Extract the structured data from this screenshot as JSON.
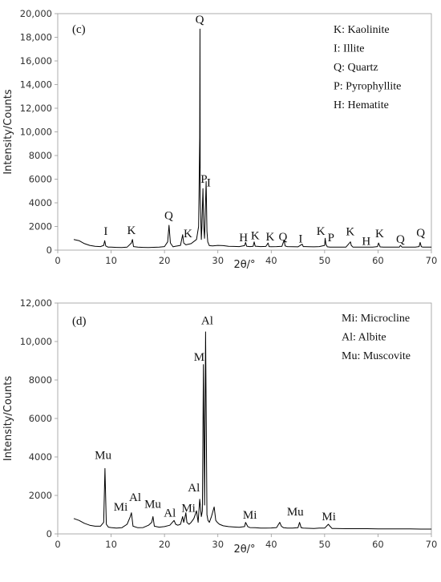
{
  "chart_data": [
    {
      "type": "line",
      "panel_label": "(c)",
      "xlabel": "2θ/°",
      "ylabel": "Intensity/Counts",
      "xlim": [
        0,
        70
      ],
      "ylim": [
        0,
        20000
      ],
      "x_ticks": [
        0,
        10,
        20,
        30,
        40,
        50,
        60,
        70
      ],
      "y_ticks": [
        0,
        2000,
        4000,
        6000,
        8000,
        10000,
        12000,
        14000,
        16000,
        18000,
        20000
      ],
      "y_tick_labels": [
        "0",
        "2000",
        "4000",
        "6000",
        "8000",
        "10,000",
        "12,000",
        "14,000",
        "16,000",
        "18,000",
        "20,000"
      ],
      "grid": false,
      "line_color": "#000000",
      "legend_position": "top-right",
      "legend": [
        "K: Kaolinite",
        "I: Illite",
        "Q: Quartz",
        "P: Pyrophyllite",
        "H: Hematite"
      ],
      "series": [
        {
          "x": [
            3,
            4,
            5,
            6,
            7,
            8,
            8.6,
            8.8,
            9.0,
            9.4,
            10,
            11,
            12,
            13,
            13.8,
            14.0,
            14.2,
            15,
            16,
            17,
            18,
            19,
            20,
            20.6,
            20.85,
            21.1,
            21.6,
            22,
            23,
            23.4,
            23.6,
            24,
            25,
            26,
            26.4,
            26.6,
            26.65,
            26.7,
            26.9,
            27.0,
            27.2,
            27.35,
            27.5,
            27.8,
            27.95,
            28.1,
            28.4,
            29,
            30,
            31,
            32,
            33,
            34,
            35,
            35.2,
            35.4,
            36,
            36.6,
            36.8,
            37,
            38,
            39,
            39.4,
            39.6,
            40,
            41,
            42,
            42.4,
            42.6,
            43,
            44,
            45,
            45.8,
            46,
            47,
            48,
            49,
            50,
            50.1,
            50.25,
            50.5,
            51,
            52,
            53,
            54,
            54.85,
            55.0,
            55.3,
            56,
            57,
            58,
            59,
            59.9,
            60.1,
            60.4,
            61,
            62,
            63,
            64,
            64.2,
            64.5,
            65,
            66,
            67,
            67.7,
            67.9,
            68.1,
            68.4,
            69,
            70
          ],
          "y": [
            900,
            800,
            550,
            400,
            320,
            300,
            400,
            800,
            350,
            260,
            250,
            230,
            220,
            250,
            600,
            900,
            300,
            250,
            230,
            220,
            240,
            260,
            300,
            700,
            2100,
            600,
            280,
            320,
            400,
            1300,
            600,
            450,
            550,
            900,
            2000,
            9500,
            18700,
            4500,
            900,
            1800,
            5200,
            2000,
            1000,
            5800,
            1600,
            700,
            380,
            350,
            400,
            380,
            320,
            310,
            300,
            380,
            650,
            320,
            300,
            320,
            700,
            330,
            300,
            310,
            600,
            300,
            290,
            300,
            320,
            850,
            350,
            300,
            290,
            280,
            500,
            300,
            290,
            280,
            300,
            400,
            1000,
            500,
            280,
            260,
            260,
            250,
            260,
            700,
            400,
            260,
            250,
            250,
            250,
            260,
            300,
            600,
            270,
            260,
            250,
            250,
            250,
            400,
            250,
            250,
            250,
            260,
            300,
            650,
            300,
            250,
            250,
            250
          ]
        }
      ],
      "annotations": [
        {
          "text": "I",
          "x": 9,
          "y": 1300
        },
        {
          "text": "K",
          "x": 13.8,
          "y": 1350
        },
        {
          "text": "Q",
          "x": 20.8,
          "y": 2600
        },
        {
          "text": "K",
          "x": 24.4,
          "y": 1100
        },
        {
          "text": "Q",
          "x": 26.6,
          "y": 19200
        },
        {
          "text": "P",
          "x": 27.4,
          "y": 5700
        },
        {
          "text": "I",
          "x": 28.3,
          "y": 5400
        },
        {
          "text": "H",
          "x": 34.8,
          "y": 750
        },
        {
          "text": "K",
          "x": 37.0,
          "y": 900
        },
        {
          "text": "K",
          "x": 39.8,
          "y": 800
        },
        {
          "text": "Q",
          "x": 42.2,
          "y": 800
        },
        {
          "text": "I",
          "x": 45.5,
          "y": 650
        },
        {
          "text": "K",
          "x": 49.3,
          "y": 1300
        },
        {
          "text": "P",
          "x": 51.2,
          "y": 750
        },
        {
          "text": "K",
          "x": 54.8,
          "y": 1250
        },
        {
          "text": "H",
          "x": 57.8,
          "y": 450
        },
        {
          "text": "K",
          "x": 60.3,
          "y": 1100
        },
        {
          "text": "Q",
          "x": 64.2,
          "y": 600
        },
        {
          "text": "Q",
          "x": 68.0,
          "y": 1150
        }
      ]
    },
    {
      "type": "line",
      "panel_label": "(d)",
      "xlabel": "2θ/°",
      "ylabel": "Intensity/Counts",
      "xlim": [
        0,
        70
      ],
      "ylim": [
        0,
        12000
      ],
      "x_ticks": [
        0,
        10,
        20,
        30,
        40,
        50,
        60,
        70
      ],
      "y_ticks": [
        0,
        2000,
        4000,
        6000,
        8000,
        10000,
        12000
      ],
      "y_tick_labels": [
        "0",
        "2000",
        "4000",
        "6000",
        "8000",
        "10,000",
        "12,000"
      ],
      "grid": false,
      "line_color": "#000000",
      "legend_position": "top-right",
      "legend": [
        "Mi: Microcline",
        "Al: Albite",
        "Mu: Muscovite"
      ],
      "series": [
        {
          "x": [
            3,
            4,
            5,
            6,
            7,
            8,
            8.6,
            8.85,
            9.1,
            9.5,
            10,
            11,
            12,
            13,
            13.6,
            13.8,
            14.1,
            15,
            16,
            17,
            17.6,
            17.85,
            18.1,
            19,
            20,
            21,
            21.8,
            22.1,
            22.5,
            23,
            23.4,
            23.6,
            23.8,
            24.0,
            24.2,
            24.6,
            25,
            25.5,
            26.0,
            26.3,
            26.6,
            26.9,
            27.1,
            27.3,
            27.5,
            27.7,
            27.95,
            28.15,
            28.4,
            28.8,
            29.3,
            29.6,
            29.9,
            30.3,
            31,
            32,
            33,
            34,
            35,
            35.2,
            35.6,
            36,
            37,
            38,
            39,
            40,
            41,
            41.6,
            41.9,
            42.3,
            43,
            44,
            45,
            45.3,
            45.6,
            46,
            47,
            48,
            49,
            50,
            50.7,
            51.0,
            51.4,
            52,
            54,
            56,
            58,
            60,
            62,
            64,
            66,
            68,
            70
          ],
          "y": [
            800,
            700,
            550,
            450,
            400,
            400,
            600,
            3400,
            500,
            350,
            330,
            300,
            320,
            500,
            900,
            1100,
            400,
            320,
            330,
            450,
            600,
            900,
            400,
            350,
            380,
            450,
            700,
            500,
            450,
            500,
            900,
            600,
            800,
            1100,
            600,
            500,
            600,
            800,
            1200,
            600,
            1800,
            900,
            1200,
            8800,
            1500,
            10500,
            1000,
            700,
            600,
            900,
            1400,
            700,
            600,
            500,
            420,
            380,
            360,
            340,
            380,
            600,
            380,
            330,
            320,
            300,
            300,
            310,
            330,
            600,
            400,
            320,
            300,
            300,
            320,
            600,
            320,
            300,
            290,
            280,
            300,
            300,
            500,
            400,
            280,
            280,
            270,
            270,
            270,
            260,
            260,
            260,
            260,
            250,
            250
          ]
        }
      ],
      "annotations": [
        {
          "text": "Mu",
          "x": 8.5,
          "y": 3900
        },
        {
          "text": "Mi",
          "x": 11.8,
          "y": 1200
        },
        {
          "text": "Al",
          "x": 14.5,
          "y": 1700
        },
        {
          "text": "Mu",
          "x": 17.8,
          "y": 1350
        },
        {
          "text": "Al",
          "x": 21.0,
          "y": 900
        },
        {
          "text": "Mi",
          "x": 24.5,
          "y": 1150
        },
        {
          "text": "Al",
          "x": 25.5,
          "y": 2200
        },
        {
          "text": "M",
          "x": 26.5,
          "y": 9000
        },
        {
          "text": "Al",
          "x": 28.0,
          "y": 10900
        },
        {
          "text": "Mi",
          "x": 36.0,
          "y": 800
        },
        {
          "text": "Mu",
          "x": 44.5,
          "y": 950
        },
        {
          "text": "Mi",
          "x": 50.8,
          "y": 700
        }
      ]
    }
  ]
}
